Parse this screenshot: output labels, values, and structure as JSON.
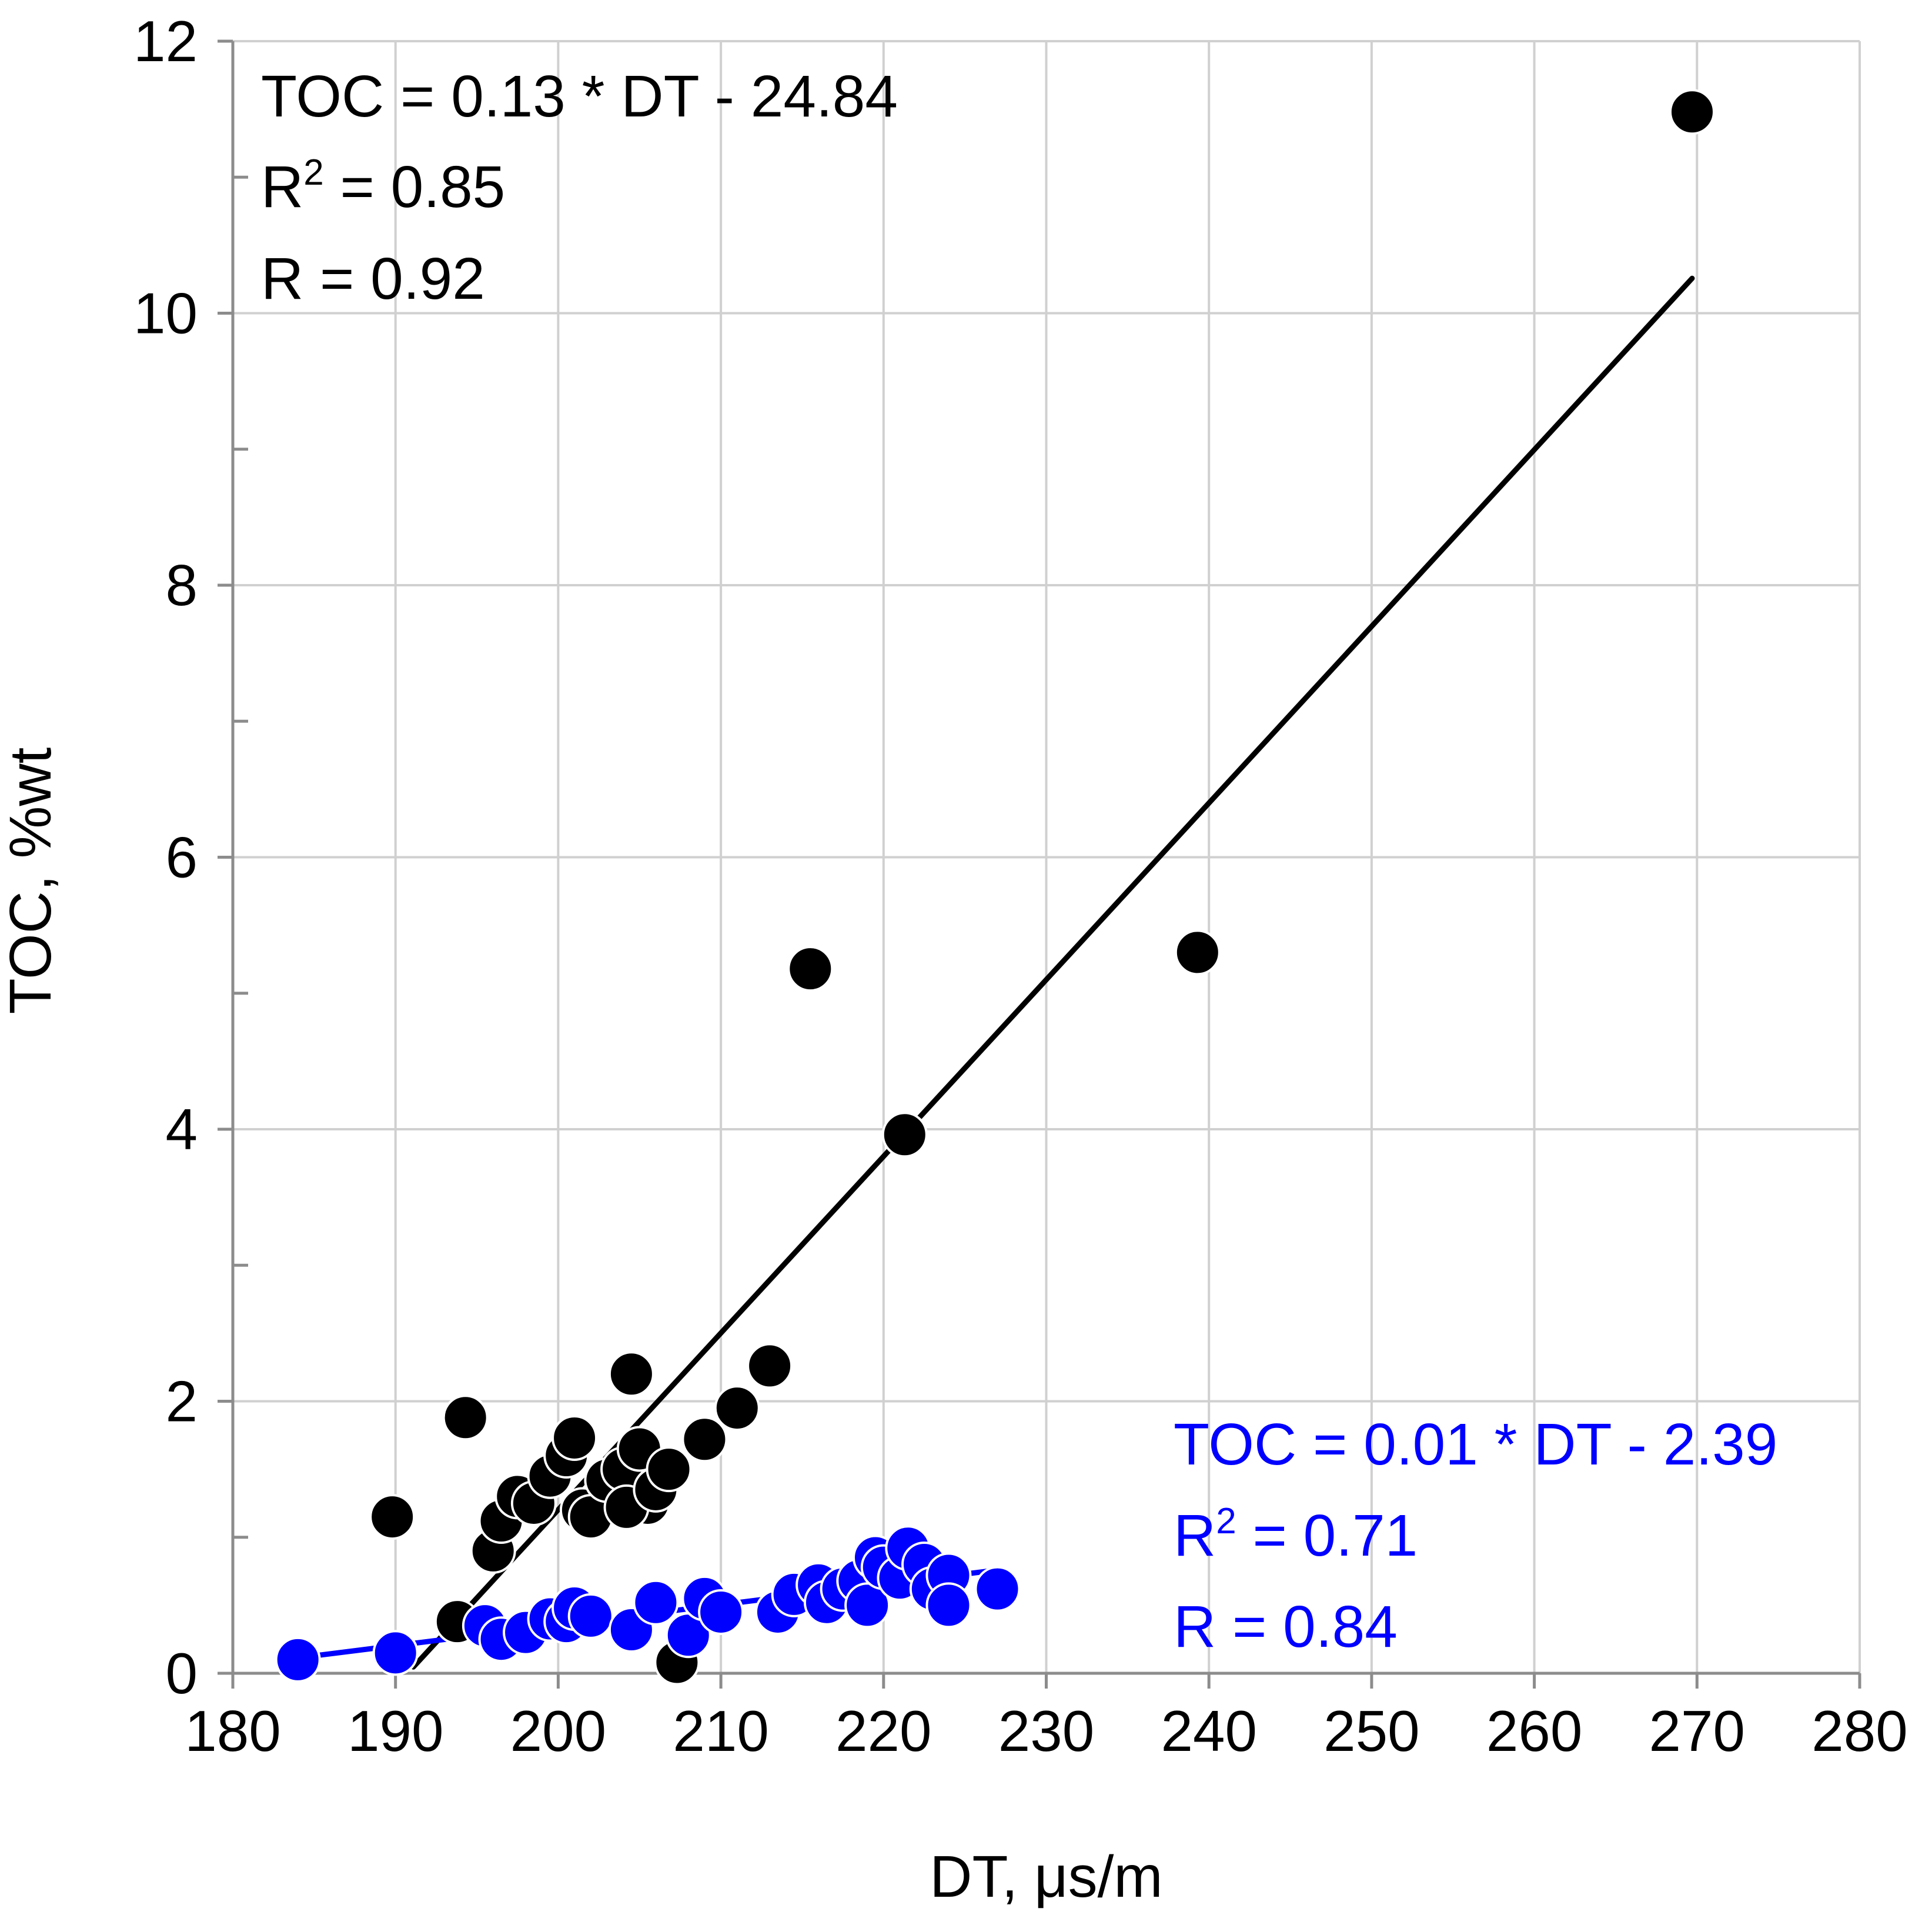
{
  "chart_data": {
    "type": "scatter",
    "xlabel": "DT, μs/m",
    "ylabel": "TOC, %wt",
    "xlim": [
      180,
      280
    ],
    "ylim": [
      0,
      12
    ],
    "x_ticks": [
      "180",
      "190",
      "200",
      "210",
      "220",
      "230",
      "240",
      "250",
      "260",
      "270",
      "280"
    ],
    "y_ticks": [
      "0",
      "2",
      "4",
      "6",
      "8",
      "10",
      "12"
    ],
    "x_major_step": 10,
    "y_major_step": 2,
    "y_minor_step": 1,
    "grid": true,
    "series": [
      {
        "color": "#000000",
        "marker": "circle",
        "points": [
          [
            189.8,
            1.15
          ],
          [
            194.3,
            1.88
          ],
          [
            193.8,
            0.38
          ],
          [
            196.0,
            0.9
          ],
          [
            196.5,
            1.12
          ],
          [
            197.5,
            1.3
          ],
          [
            198.5,
            1.25
          ],
          [
            199.5,
            1.45
          ],
          [
            200.5,
            1.6
          ],
          [
            201.0,
            1.73
          ],
          [
            201.5,
            1.2
          ],
          [
            202.0,
            1.15
          ],
          [
            203.0,
            1.42
          ],
          [
            204.0,
            1.5
          ],
          [
            204.5,
            2.2
          ],
          [
            205.0,
            1.65
          ],
          [
            205.5,
            1.25
          ],
          [
            204.2,
            1.22
          ],
          [
            206.0,
            1.35
          ],
          [
            206.8,
            1.5
          ],
          [
            207.3,
            0.08
          ],
          [
            209.0,
            1.72
          ],
          [
            211.0,
            1.95
          ],
          [
            213.0,
            2.26
          ],
          [
            215.5,
            5.18
          ],
          [
            221.3,
            3.96
          ],
          [
            239.3,
            5.3
          ],
          [
            269.7,
            11.48
          ]
        ],
        "trendline": {
          "x_range": [
            191.1,
            269.7
          ]
        },
        "annotation": [
          "TOC = 0.13 * DT - 24.84",
          "R",
          "2",
          " = 0.85",
          "R = 0.92"
        ]
      },
      {
        "color": "#0000ff",
        "marker": "circle",
        "points": [
          [
            184.0,
            0.1
          ],
          [
            190.0,
            0.15
          ],
          [
            195.5,
            0.35
          ],
          [
            196.5,
            0.25
          ],
          [
            198.0,
            0.3
          ],
          [
            199.5,
            0.4
          ],
          [
            200.5,
            0.38
          ],
          [
            201.0,
            0.48
          ],
          [
            202.0,
            0.42
          ],
          [
            204.5,
            0.32
          ],
          [
            206.0,
            0.52
          ],
          [
            208.0,
            0.28
          ],
          [
            209.0,
            0.55
          ],
          [
            210.0,
            0.45
          ],
          [
            213.5,
            0.45
          ],
          [
            214.5,
            0.58
          ],
          [
            216.0,
            0.65
          ],
          [
            216.5,
            0.52
          ],
          [
            217.5,
            0.62
          ],
          [
            218.5,
            0.68
          ],
          [
            219.0,
            0.5
          ],
          [
            219.5,
            0.85
          ],
          [
            220.0,
            0.78
          ],
          [
            221.0,
            0.7
          ],
          [
            221.5,
            0.92
          ],
          [
            222.5,
            0.8
          ],
          [
            223.0,
            0.62
          ],
          [
            224.0,
            0.72
          ],
          [
            224.0,
            0.5
          ],
          [
            227.0,
            0.62
          ]
        ],
        "trendline": {
          "x_range": [
            184.0,
            227.0
          ]
        },
        "annotation": [
          "TOC = 0.01 * DT - 2.39",
          "R",
          "2",
          " = 0.71",
          "R = 0.84"
        ]
      }
    ]
  }
}
